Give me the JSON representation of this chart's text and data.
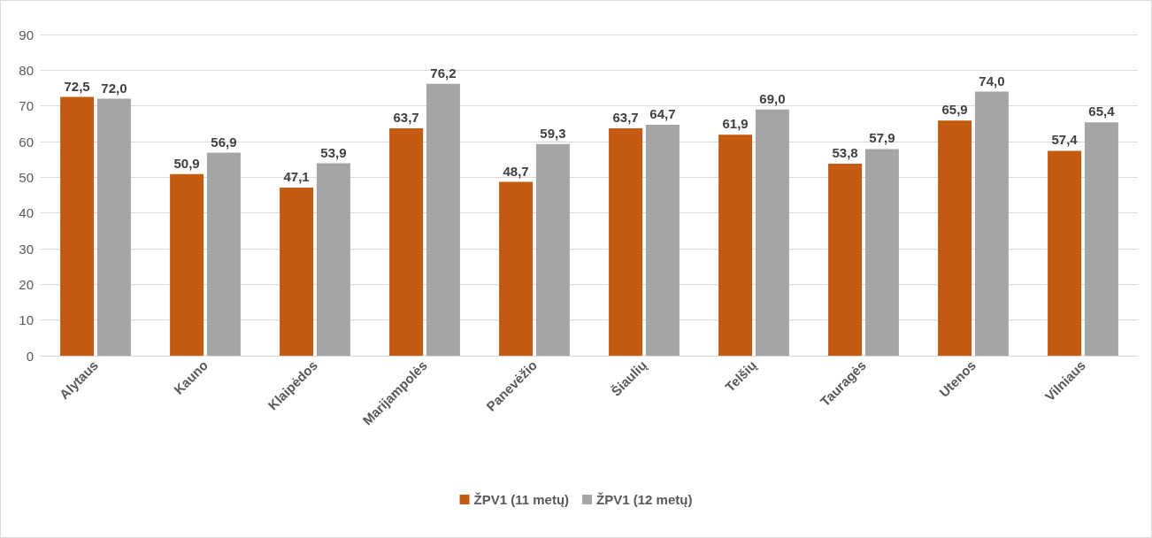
{
  "chart_data": {
    "type": "bar",
    "categories": [
      "Alytaus",
      "Kauno",
      "Klaipėdos",
      "Marijampolės",
      "Panevėžio",
      "Šiaulių",
      "Telšių",
      "Tauragės",
      "Utenos",
      "Vilniaus"
    ],
    "series": [
      {
        "name": "ŽPV1 (11 metų)",
        "color": "#c55a11",
        "values": [
          72.5,
          50.9,
          47.1,
          63.7,
          48.7,
          63.7,
          61.9,
          53.8,
          65.9,
          57.4
        ],
        "value_labels": [
          "72,5",
          "50,9",
          "47,1",
          "63,7",
          "48,7",
          "63,7",
          "61,9",
          "53,8",
          "65,9",
          "57,4"
        ]
      },
      {
        "name": "ŽPV1 (12 metų)",
        "color": "#a5a5a5",
        "values": [
          72.0,
          56.9,
          53.9,
          76.2,
          59.3,
          64.7,
          69.0,
          57.9,
          74.0,
          65.4
        ],
        "value_labels": [
          "72,0",
          "56,9",
          "53,9",
          "76,2",
          "59,3",
          "64,7",
          "69,0",
          "57,9",
          "74,0",
          "65,4"
        ]
      }
    ],
    "ylim": [
      0,
      90
    ],
    "yticks": [
      0,
      10,
      20,
      30,
      40,
      50,
      60,
      70,
      80,
      90
    ],
    "grid": "y",
    "legend": "bottom"
  }
}
